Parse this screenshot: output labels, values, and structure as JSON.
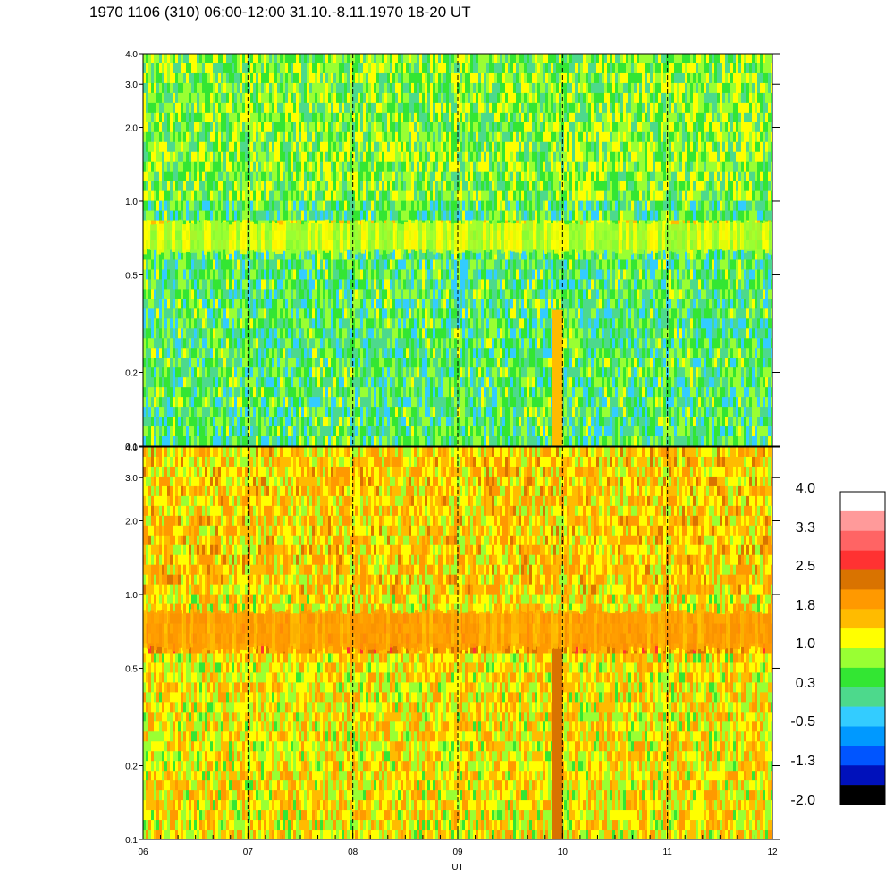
{
  "page": {
    "title": "1970 1106 (310) 06:00-12:00 31.10.-8.11.1970  18-20 UT"
  },
  "chart_data": [
    {
      "type": "heatmap",
      "panel": "upper",
      "title": "",
      "xlabel": "",
      "ylabel": "",
      "x_ticks": [
        "06",
        "07",
        "08",
        "09",
        "10",
        "11",
        "12"
      ],
      "x_range": [
        6,
        12
      ],
      "y_scale": "log",
      "y_ticks": [
        0.1,
        0.2,
        0.5,
        1.0,
        2.0,
        3.0,
        4.0
      ],
      "y_tick_labels": [
        "0.1",
        "0.2",
        "0.5",
        "1.0",
        "2.0",
        "3.0",
        "4.0"
      ],
      "y_range": [
        0.1,
        4.0
      ],
      "background_level": 0.3,
      "bands": [
        {
          "y_low": 0.62,
          "y_high": 0.82,
          "level": 1.0,
          "description": "horizontal emission band"
        },
        {
          "y_low": 1.0,
          "y_high": 4.0,
          "level": 0.6
        }
      ],
      "spikes": [
        {
          "x": 9.95,
          "y_low": 0.1,
          "y_high": 0.36,
          "level": 1.8
        }
      ],
      "vertical_dashed_lines_x": [
        7,
        8,
        9,
        10,
        11
      ]
    },
    {
      "type": "heatmap",
      "panel": "lower",
      "title": "",
      "xlabel": "UT",
      "ylabel": "",
      "x_ticks": [
        "06",
        "07",
        "08",
        "09",
        "10",
        "11",
        "12"
      ],
      "x_range": [
        6,
        12
      ],
      "y_scale": "log",
      "y_ticks": [
        0.1,
        0.2,
        0.5,
        1.0,
        2.0,
        3.0,
        4.0
      ],
      "y_tick_labels": [
        "0.1",
        "0.2",
        "0.5",
        "1.0",
        "2.0",
        "3.0",
        "4.0"
      ],
      "y_range": [
        0.1,
        4.0
      ],
      "background_level": 1.3,
      "bands": [
        {
          "y_low": 0.6,
          "y_high": 0.85,
          "level": 1.9,
          "description": "horizontal emission band"
        },
        {
          "y_low": 1.0,
          "y_high": 4.0,
          "level": 1.5
        }
      ],
      "spikes": [
        {
          "x": 9.95,
          "y_low": 0.1,
          "y_high": 0.6,
          "level": 2.6
        }
      ],
      "vertical_dashed_lines_x": [
        7,
        8,
        9,
        10,
        11
      ]
    }
  ],
  "colorbar": {
    "labels": [
      "4.0",
      "3.3",
      "2.5",
      "1.8",
      "1.0",
      "0.3",
      "-0.5",
      "-1.3",
      "-2.0"
    ],
    "colors": [
      "#ffffff",
      "#ff9a9a",
      "#ff6464",
      "#ff3232",
      "#d97300",
      "#ff9900",
      "#ffbb00",
      "#ffff00",
      "#99ff33",
      "#33e633",
      "#4dd98c",
      "#33ccff",
      "#0099ff",
      "#0055ff",
      "#0011bb",
      "#000000"
    ]
  }
}
